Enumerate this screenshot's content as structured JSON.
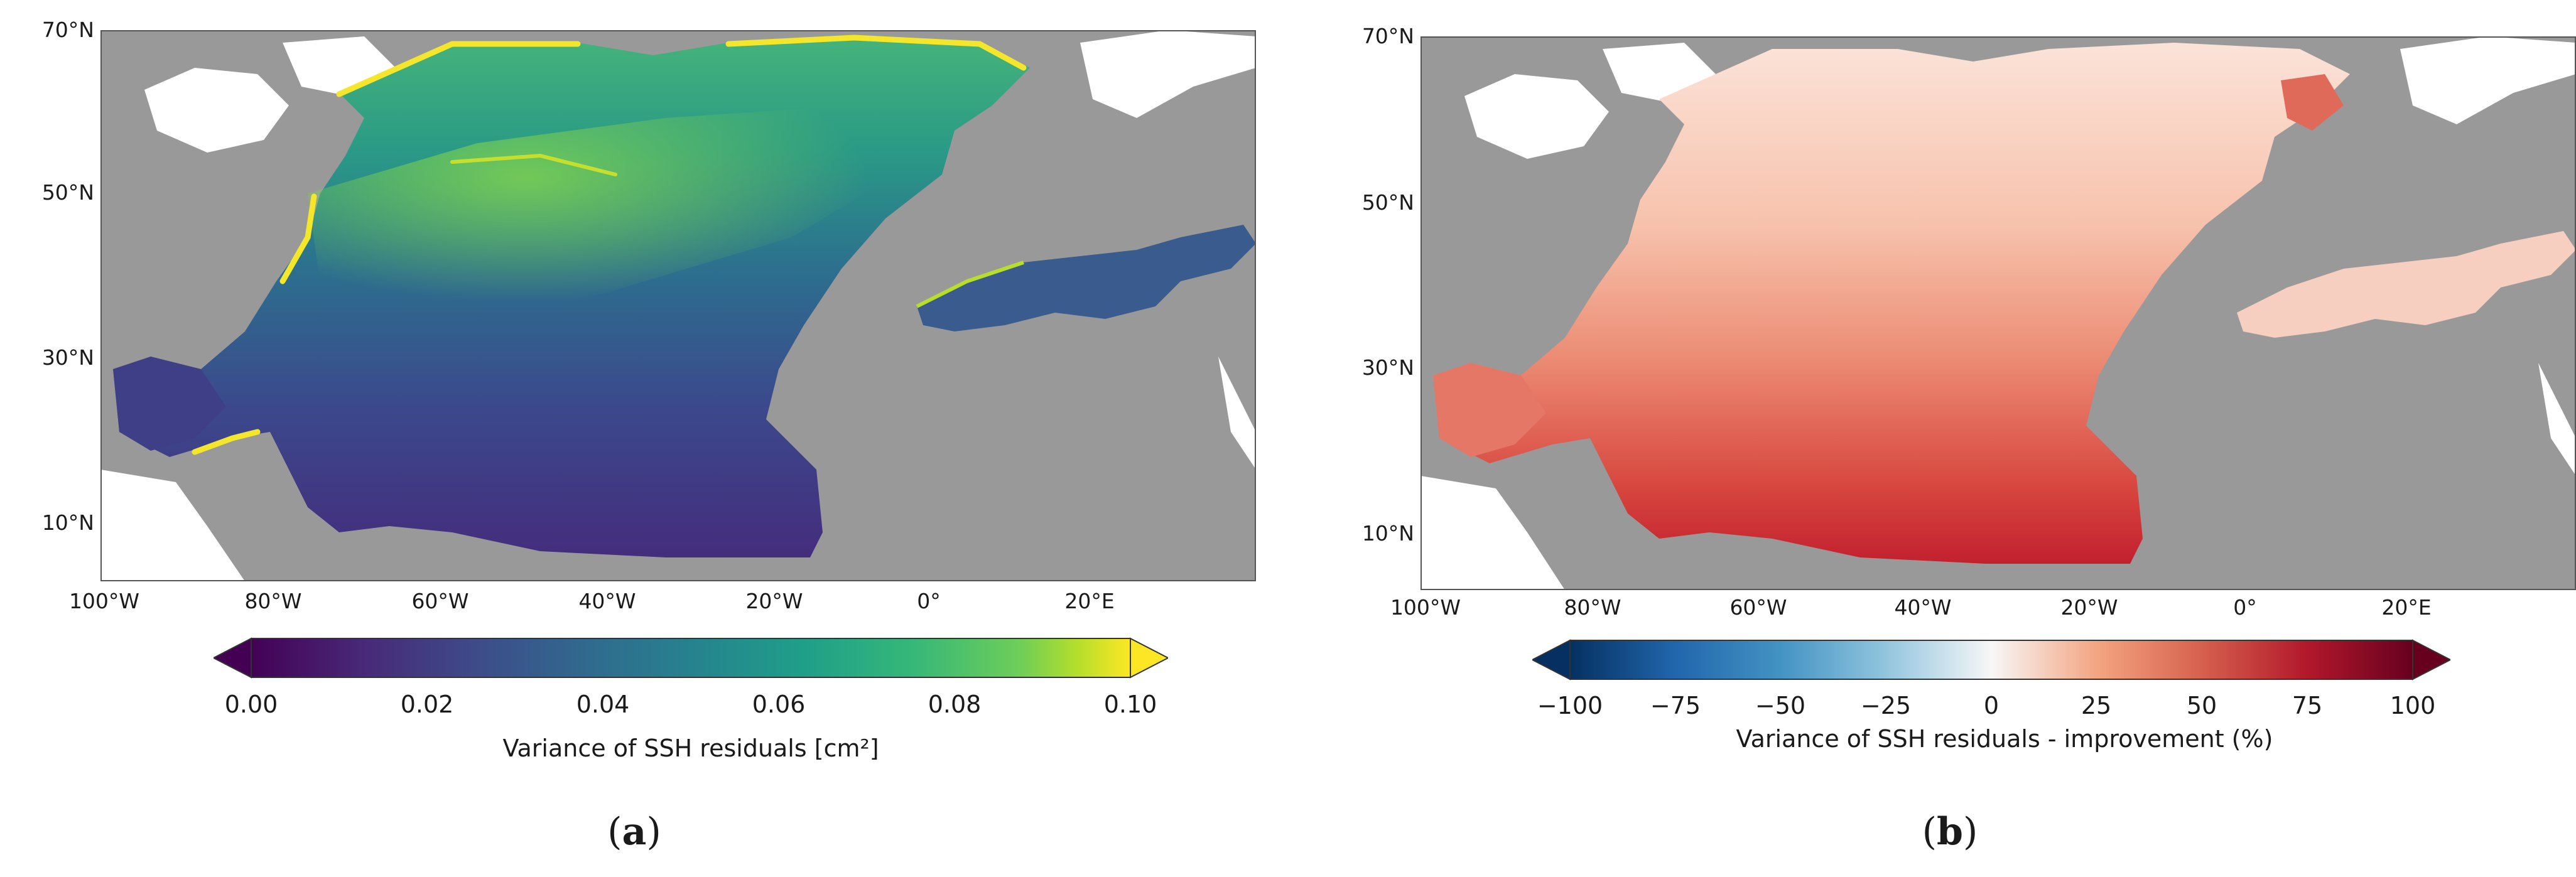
{
  "panels": [
    {
      "id": "a",
      "letter": "a",
      "lat_labels": [
        "70°N",
        "50°N",
        "30°N",
        "10°N"
      ],
      "lon_labels": [
        "100°W",
        "80°W",
        "60°W",
        "40°W",
        "20°W",
        "0°",
        "20°E"
      ],
      "colorbar": {
        "colormap": "viridis",
        "ticks": [
          "0.00",
          "0.02",
          "0.04",
          "0.06",
          "0.08",
          "0.10"
        ],
        "label": "Variance of SSH residuals [cm²]",
        "extend": "both"
      }
    },
    {
      "id": "b",
      "letter": "b",
      "lat_labels": [
        "70°N",
        "50°N",
        "30°N",
        "10°N"
      ],
      "lon_labels": [
        "100°W",
        "80°W",
        "60°W",
        "40°W",
        "20°W",
        "0°",
        "20°E"
      ],
      "colorbar": {
        "colormap": "RdBu_r",
        "ticks": [
          "−100",
          "−75",
          "−50",
          "−25",
          "0",
          "25",
          "50",
          "75",
          "100"
        ],
        "label": "Variance of SSH residuals - improvement (%)",
        "extend": "both"
      }
    }
  ],
  "colors": {
    "land": "#999999",
    "unmapped": "#ffffff",
    "frame": "#555555"
  }
}
